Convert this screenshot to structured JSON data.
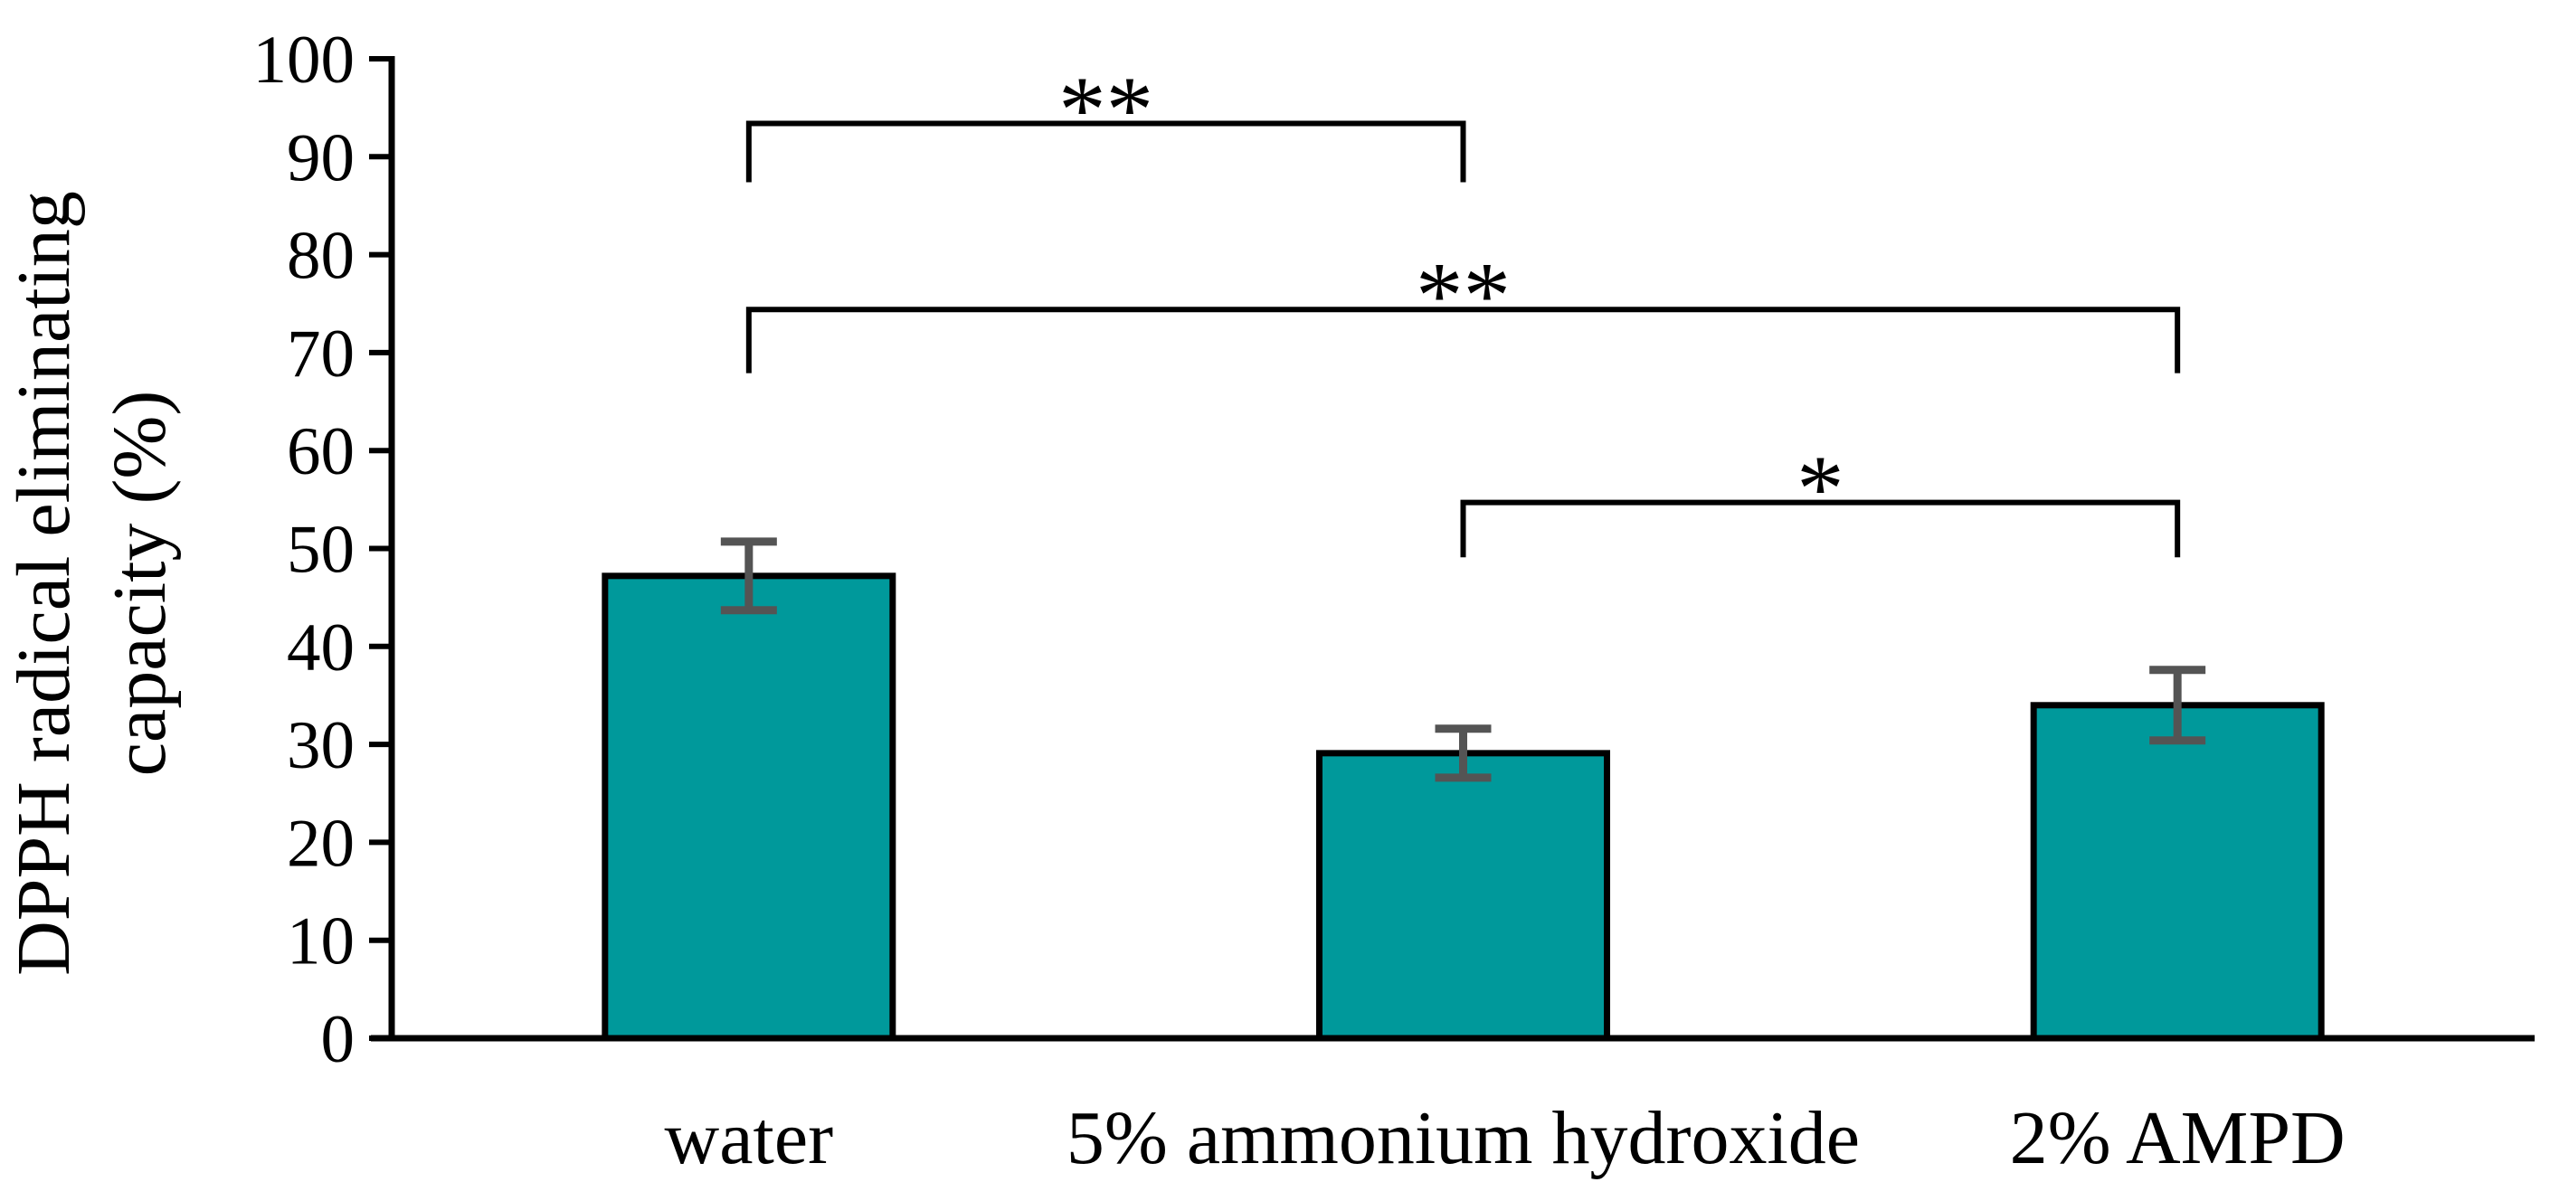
{
  "figure": {
    "background": "#ffffff"
  },
  "chart_data": {
    "type": "bar",
    "title": "",
    "xlabel": "",
    "ylabel": "DPPH radical eliminating capacity (%)",
    "ylabel_lines": [
      "DPPH radical eliminating",
      "capacity (%)"
    ],
    "categories": [
      "water",
      "5% ammonium hydroxide",
      "2% AMPD"
    ],
    "values": [
      47.2,
      29.1,
      34.0
    ],
    "error_bars": [
      3.5,
      2.5,
      3.6
    ],
    "ylim": [
      0,
      100
    ],
    "yticks": [
      0,
      10,
      20,
      30,
      40,
      50,
      60,
      70,
      80,
      90,
      100
    ],
    "grid": false,
    "legend": null,
    "bar_fill_color": "#00999B",
    "bar_edge_color": "#000000",
    "error_bar_color": "#545454",
    "axis_color": "#000000",
    "significance_brackets": [
      {
        "between": [
          "water",
          "5% ammonium hydroxide"
        ],
        "pair": [
          0,
          1
        ],
        "label": "**",
        "y": 93.4,
        "drop_to": 87.4
      },
      {
        "between": [
          "water",
          "2% AMPD"
        ],
        "pair": [
          0,
          2
        ],
        "label": "**",
        "y": 74.4,
        "drop_to": 67.9
      },
      {
        "between": [
          "5% ammonium hydroxide",
          "2% AMPD"
        ],
        "pair": [
          1,
          2
        ],
        "label": "*",
        "y": 54.7,
        "drop_to": 49.1
      }
    ]
  }
}
